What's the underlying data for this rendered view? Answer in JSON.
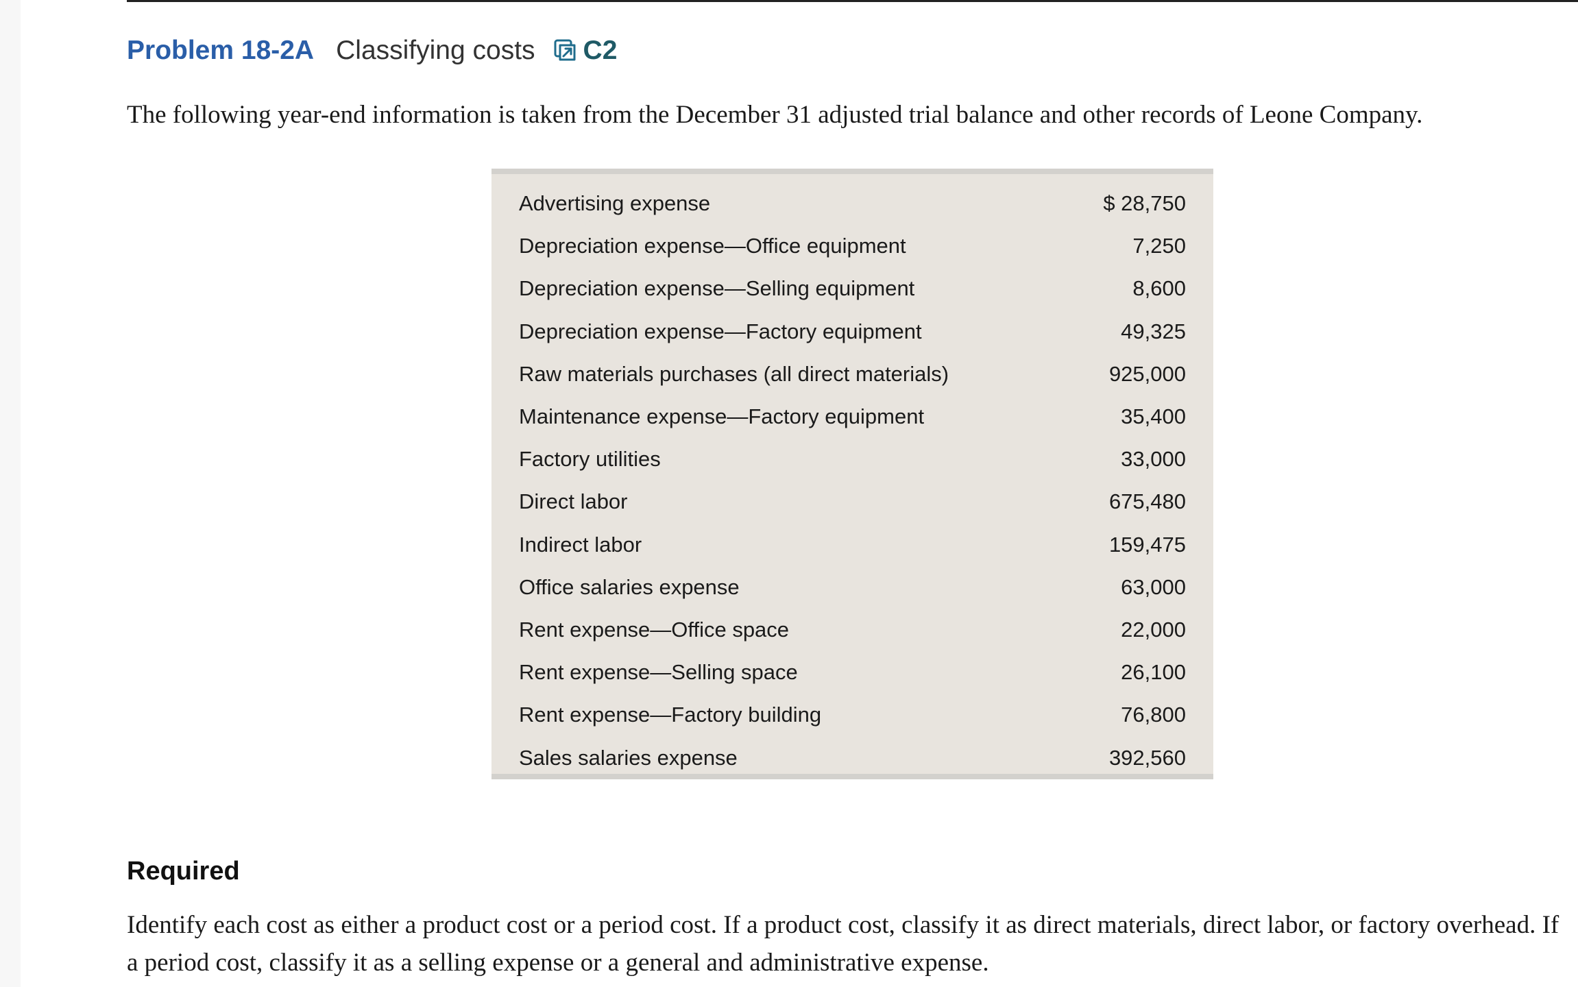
{
  "header": {
    "problem_number": "Problem 18-2A",
    "title": "Classifying costs",
    "objective": "C2",
    "link_icon": "external-link-icon"
  },
  "intro": "The following year-end information is taken from the December 31 adjusted trial balance and other records of Leone Company.",
  "table": {
    "rows": [
      {
        "label": "Advertising expense",
        "amount": "$ 28,750"
      },
      {
        "label": "Depreciation expense—Office equipment",
        "amount": "7,250"
      },
      {
        "label": "Depreciation expense—Selling equipment",
        "amount": "8,600"
      },
      {
        "label": "Depreciation expense—Factory equipment",
        "amount": "49,325"
      },
      {
        "label": "Raw materials purchases (all direct materials)",
        "amount": "925,000"
      },
      {
        "label": "Maintenance expense—Factory equipment",
        "amount": "35,400"
      },
      {
        "label": "Factory utilities",
        "amount": "33,000"
      },
      {
        "label": "Direct labor",
        "amount": "675,480"
      },
      {
        "label": "Indirect labor",
        "amount": "159,475"
      },
      {
        "label": "Office salaries expense",
        "amount": "63,000"
      },
      {
        "label": "Rent expense—Office space",
        "amount": "22,000"
      },
      {
        "label": "Rent expense—Selling space",
        "amount": "26,100"
      },
      {
        "label": "Rent expense—Factory building",
        "amount": "76,800"
      },
      {
        "label": "Sales salaries expense",
        "amount": "392,560"
      }
    ]
  },
  "required": {
    "heading": "Required",
    "text": "Identify each cost as either a product cost or a period cost. If a product cost, classify it as direct materials, direct labor, or factory overhead. If a period cost, classify it as a selling expense or a general and administrative expense."
  }
}
